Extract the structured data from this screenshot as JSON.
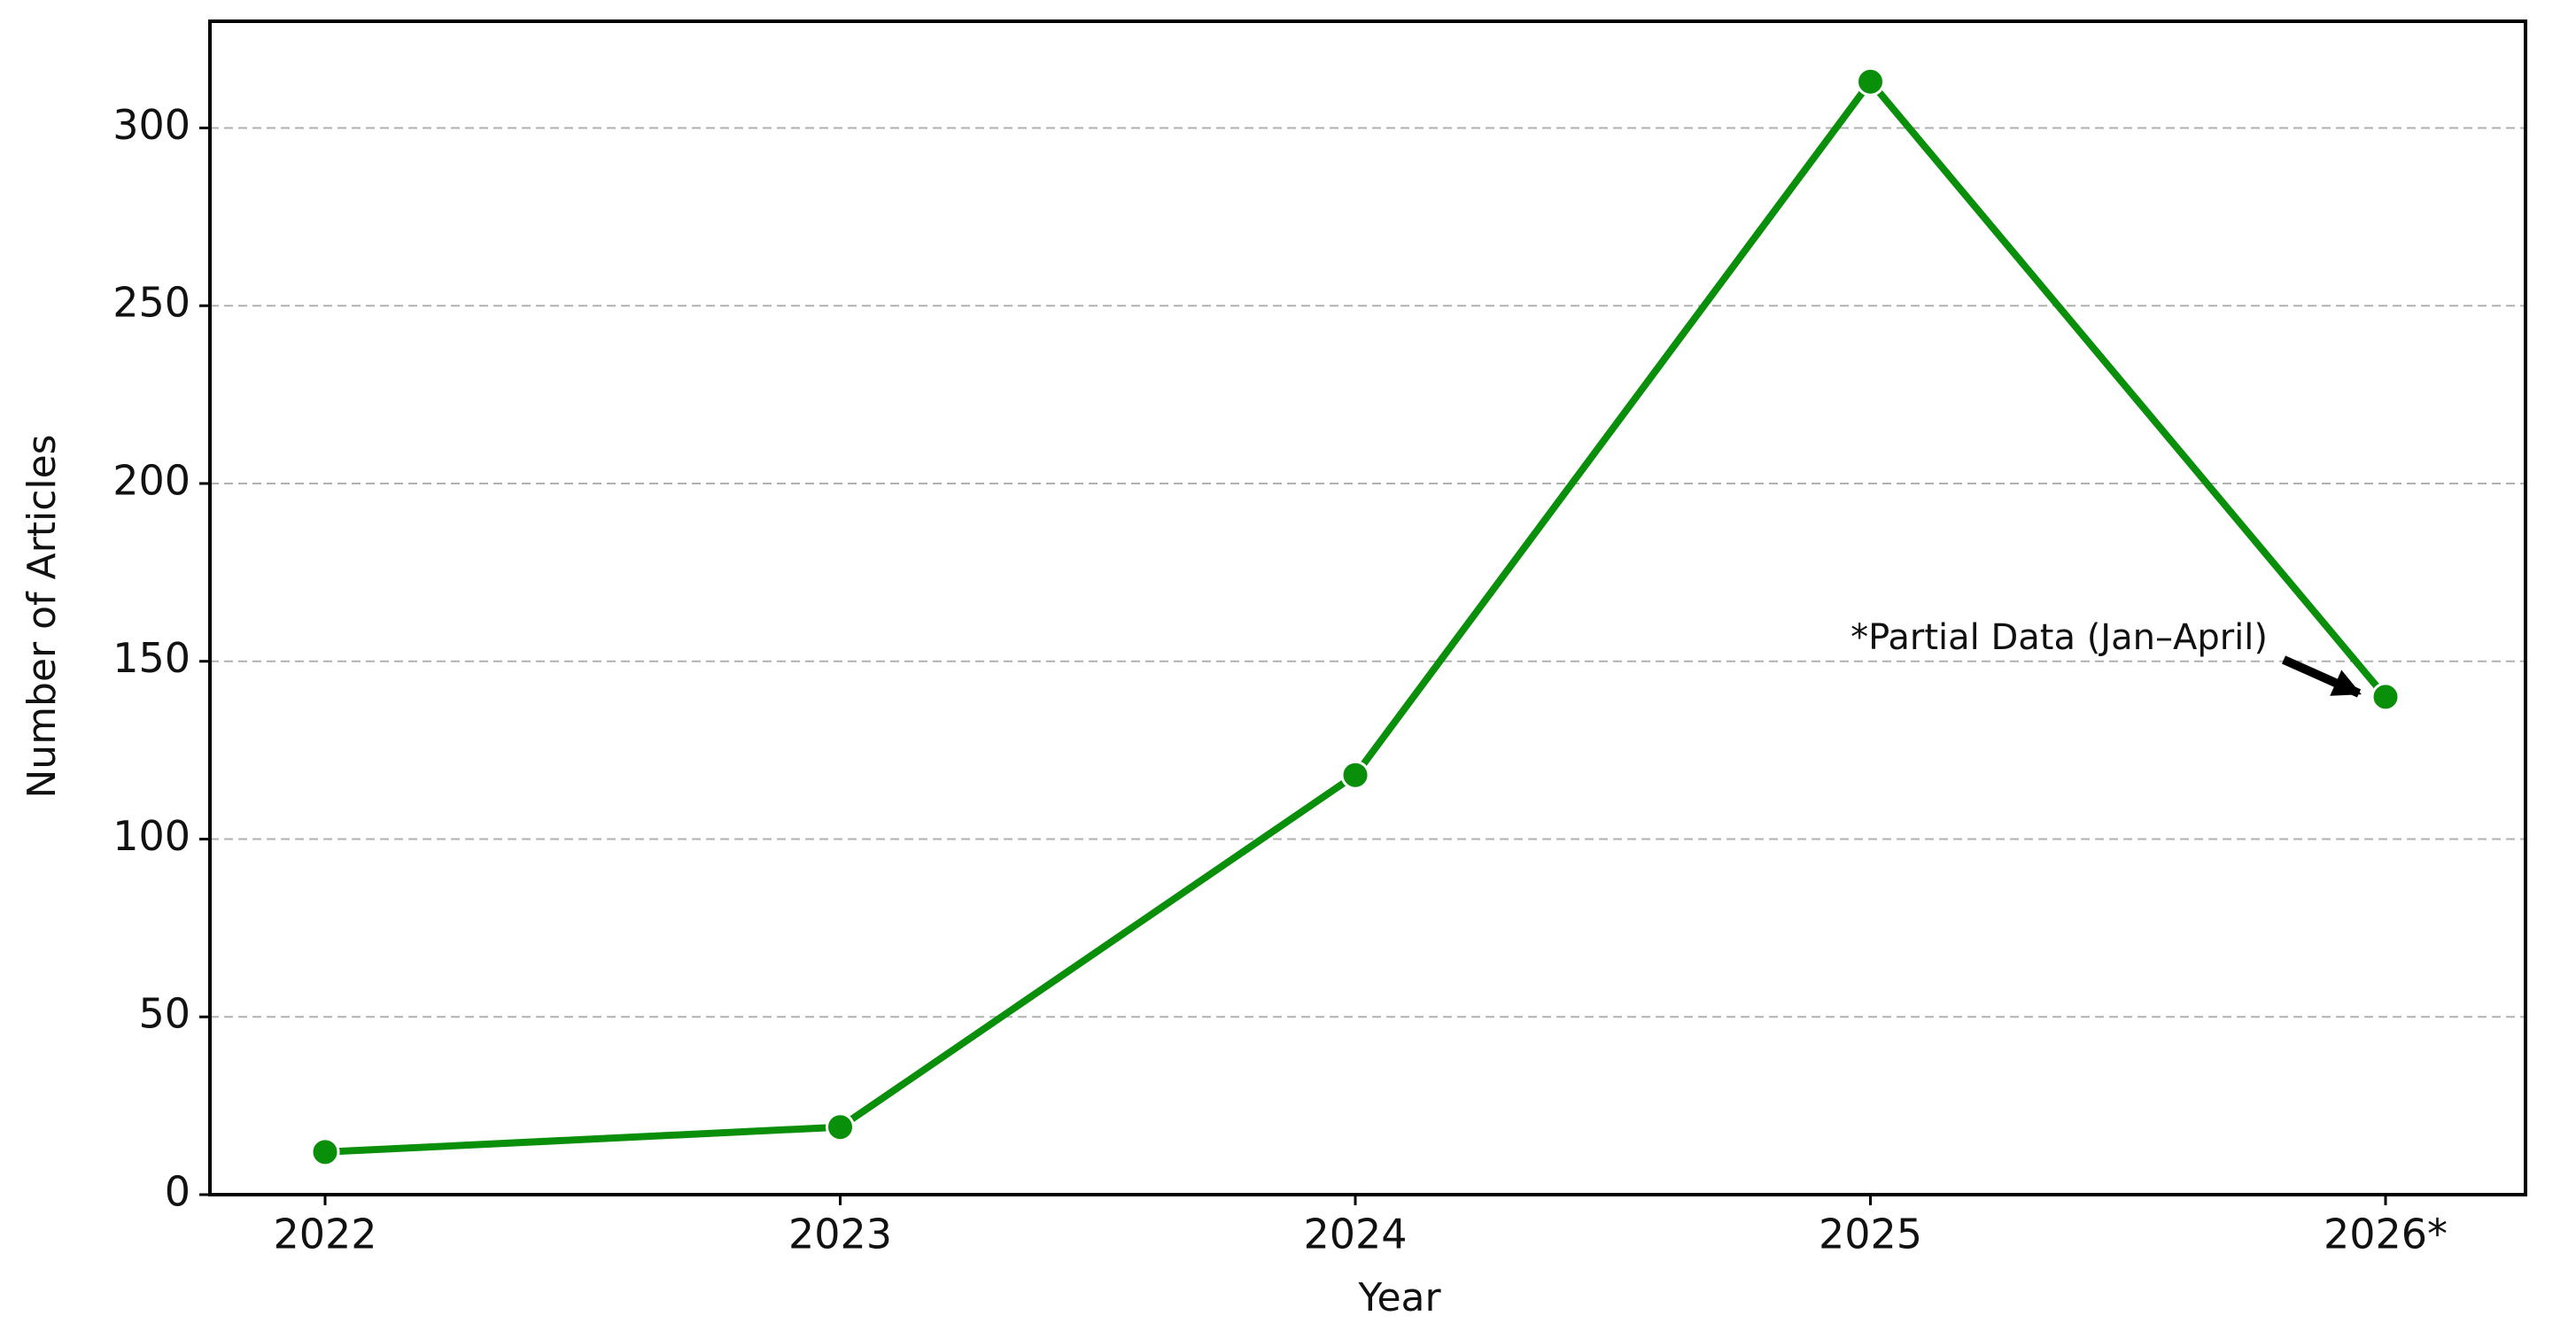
{
  "chart_data": {
    "type": "line",
    "x_label": "Year",
    "y_label": "Number of Articles",
    "categories": [
      "2022",
      "2023",
      "2024",
      "2025",
      "2026*"
    ],
    "values": [
      12,
      19,
      118,
      313,
      140
    ],
    "color": "#0a8f0a",
    "ylim": [
      0,
      330
    ],
    "yticks": [
      0,
      50,
      100,
      150,
      200,
      250,
      300
    ],
    "grid": true,
    "annotation": "*Partial Data (Jan–April)"
  }
}
